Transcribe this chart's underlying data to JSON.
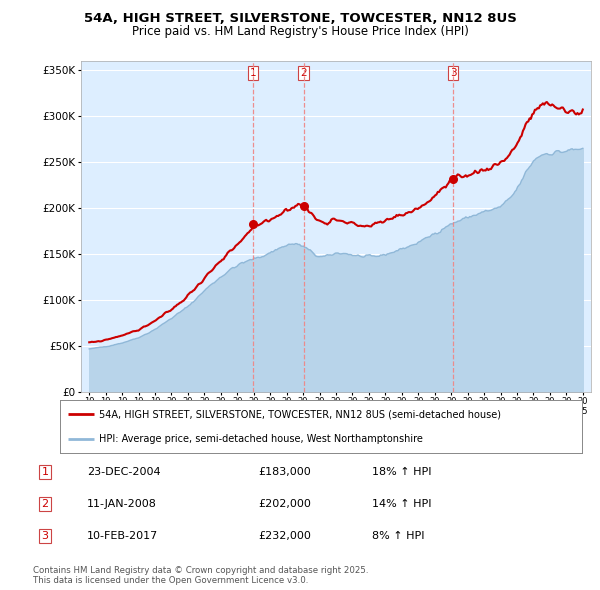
{
  "title": "54A, HIGH STREET, SILVERSTONE, TOWCESTER, NN12 8US",
  "subtitle": "Price paid vs. HM Land Registry's House Price Index (HPI)",
  "legend_line1": "54A, HIGH STREET, SILVERSTONE, TOWCESTER, NN12 8US (semi-detached house)",
  "legend_line2": "HPI: Average price, semi-detached house, West Northamptonshire",
  "footer": "Contains HM Land Registry data © Crown copyright and database right 2025.\nThis data is licensed under the Open Government Licence v3.0.",
  "transactions": [
    {
      "num": 1,
      "date": "23-DEC-2004",
      "price": "£183,000",
      "change": "18% ↑ HPI",
      "year": 2004.97
    },
    {
      "num": 2,
      "date": "11-JAN-2008",
      "price": "£202,000",
      "change": "14% ↑ HPI",
      "year": 2008.03
    },
    {
      "num": 3,
      "date": "10-FEB-2017",
      "price": "£232,000",
      "change": "8% ↑ HPI",
      "year": 2017.11
    }
  ],
  "transaction_prices": [
    183000,
    202000,
    232000
  ],
  "hpi_color": "#b8d4ea",
  "hpi_line_color": "#90b8d8",
  "price_color": "#cc0000",
  "vline_color": "#ee8888",
  "background_color": "#ffffff",
  "plot_bg_color": "#ddeeff",
  "grid_color": "#ffffff",
  "ylim": [
    0,
    360000
  ],
  "yticks": [
    0,
    50000,
    100000,
    150000,
    200000,
    250000,
    300000,
    350000
  ],
  "xlim_start": 1994.5,
  "xlim_end": 2025.5,
  "years_hpi": [
    1995,
    1996,
    1997,
    1998,
    1999,
    2000,
    2001,
    2002,
    2003,
    2004,
    2005,
    2006,
    2007,
    2008,
    2009,
    2010,
    2011,
    2012,
    2013,
    2014,
    2015,
    2016,
    2017,
    2018,
    2019,
    2020,
    2021,
    2022,
    2023,
    2024,
    2025
  ],
  "hpi_values": [
    47000,
    50000,
    54000,
    60000,
    69000,
    81000,
    94000,
    111000,
    126000,
    138000,
    145000,
    152000,
    160000,
    158000,
    147000,
    151000,
    149000,
    147000,
    150000,
    156000,
    163000,
    173000,
    183000,
    190000,
    196000,
    202000,
    222000,
    252000,
    260000,
    262000,
    265000
  ],
  "price_values": [
    54000,
    57000,
    62000,
    68000,
    78000,
    90000,
    105000,
    124000,
    142000,
    160000,
    178000,
    188000,
    198000,
    202000,
    186000,
    188000,
    183000,
    181000,
    186000,
    193000,
    200000,
    213000,
    228000,
    236000,
    242000,
    250000,
    270000,
    303000,
    312000,
    306000,
    305000
  ]
}
